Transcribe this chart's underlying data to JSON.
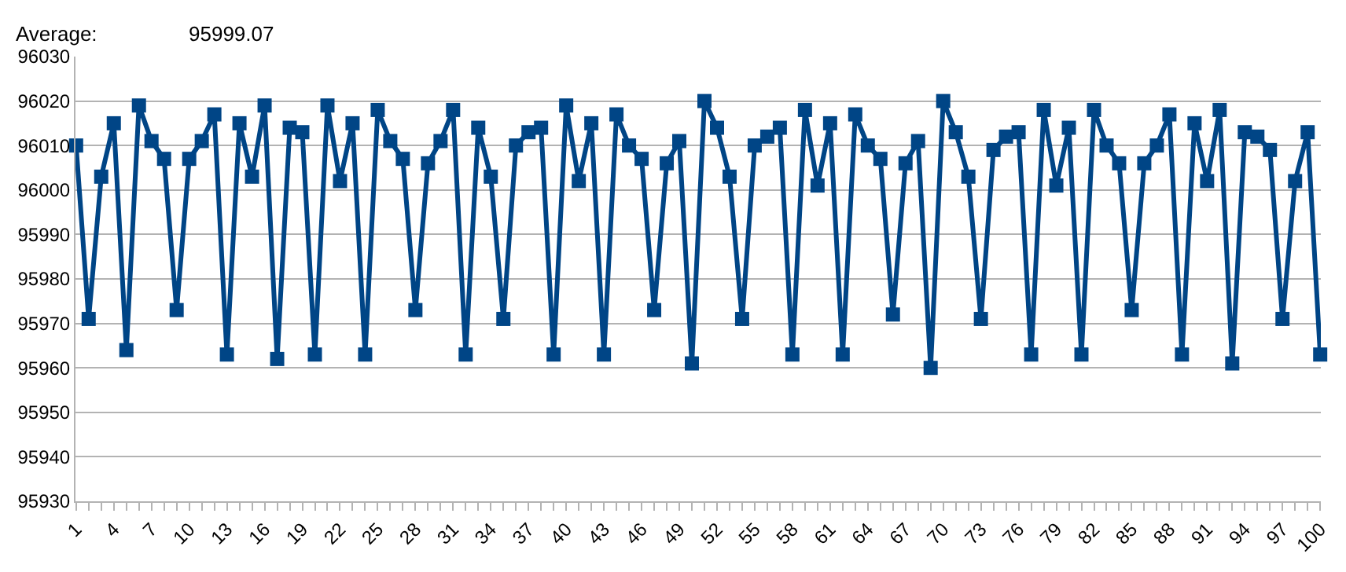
{
  "chart_data": {
    "type": "line",
    "categories": [
      "1",
      null,
      null,
      "4",
      null,
      null,
      "7",
      null,
      null,
      "10",
      null,
      null,
      "13",
      null,
      null,
      "16",
      null,
      null,
      "19",
      null,
      null,
      "22",
      null,
      null,
      "25",
      null,
      null,
      "28",
      null,
      null,
      "31",
      null,
      null,
      "34",
      null,
      null,
      "37",
      null,
      null,
      "40",
      null,
      null,
      "43",
      null,
      null,
      "46",
      null,
      null,
      "49",
      null,
      null,
      "52",
      null,
      null,
      "55",
      null,
      null,
      "58",
      null,
      null,
      "61",
      null,
      null,
      "64",
      null,
      null,
      "67",
      null,
      null,
      "70",
      null,
      null,
      "73",
      null,
      null,
      "76",
      null,
      null,
      "79",
      null,
      null,
      "82",
      null,
      null,
      "85",
      null,
      null,
      "88",
      null,
      null,
      "91",
      null,
      null,
      "94",
      null,
      null,
      "97",
      null,
      null,
      "100"
    ],
    "series": [
      {
        "color": "#004586",
        "values": [
          96010,
          95971,
          96003,
          96015,
          95964,
          96019,
          96011,
          96007,
          95973,
          96007,
          96011,
          96017,
          95963,
          96015,
          96003,
          96019,
          95962,
          96014,
          96013,
          95963,
          96019,
          96002,
          96015,
          95963,
          96018,
          96011,
          96007,
          95973,
          96006,
          96011,
          96018,
          95963,
          96014,
          96003,
          95971,
          96010,
          96013,
          96014,
          95963,
          96019,
          96002,
          96015,
          95963,
          96017,
          96010,
          96007,
          95973,
          96006,
          96011,
          95961,
          96020,
          96014,
          96003,
          95971,
          96010,
          96012,
          96014,
          95963,
          96018,
          96001,
          96015,
          95963,
          96017,
          96010,
          96007,
          95972,
          96006,
          96011,
          95960,
          96020,
          96013,
          96003,
          95971,
          96009,
          96012,
          96013,
          95963,
          96018,
          96001,
          96014,
          95963,
          96018,
          96010,
          96006,
          95973,
          96006,
          96010,
          96017,
          95963,
          96015,
          96002,
          96018,
          95961,
          96013,
          96012,
          96009,
          95971,
          96002,
          96013,
          95963
        ]
      }
    ],
    "ylim": [
      95930,
      96030
    ],
    "yticks": [
      95930,
      95940,
      95950,
      95960,
      95970,
      95980,
      95990,
      96000,
      96010,
      96020,
      96030
    ],
    "grid": "y",
    "marker": "square",
    "line_style": "solid",
    "legend": false,
    "annotations": [
      "Average:",
      "95999.07"
    ]
  }
}
